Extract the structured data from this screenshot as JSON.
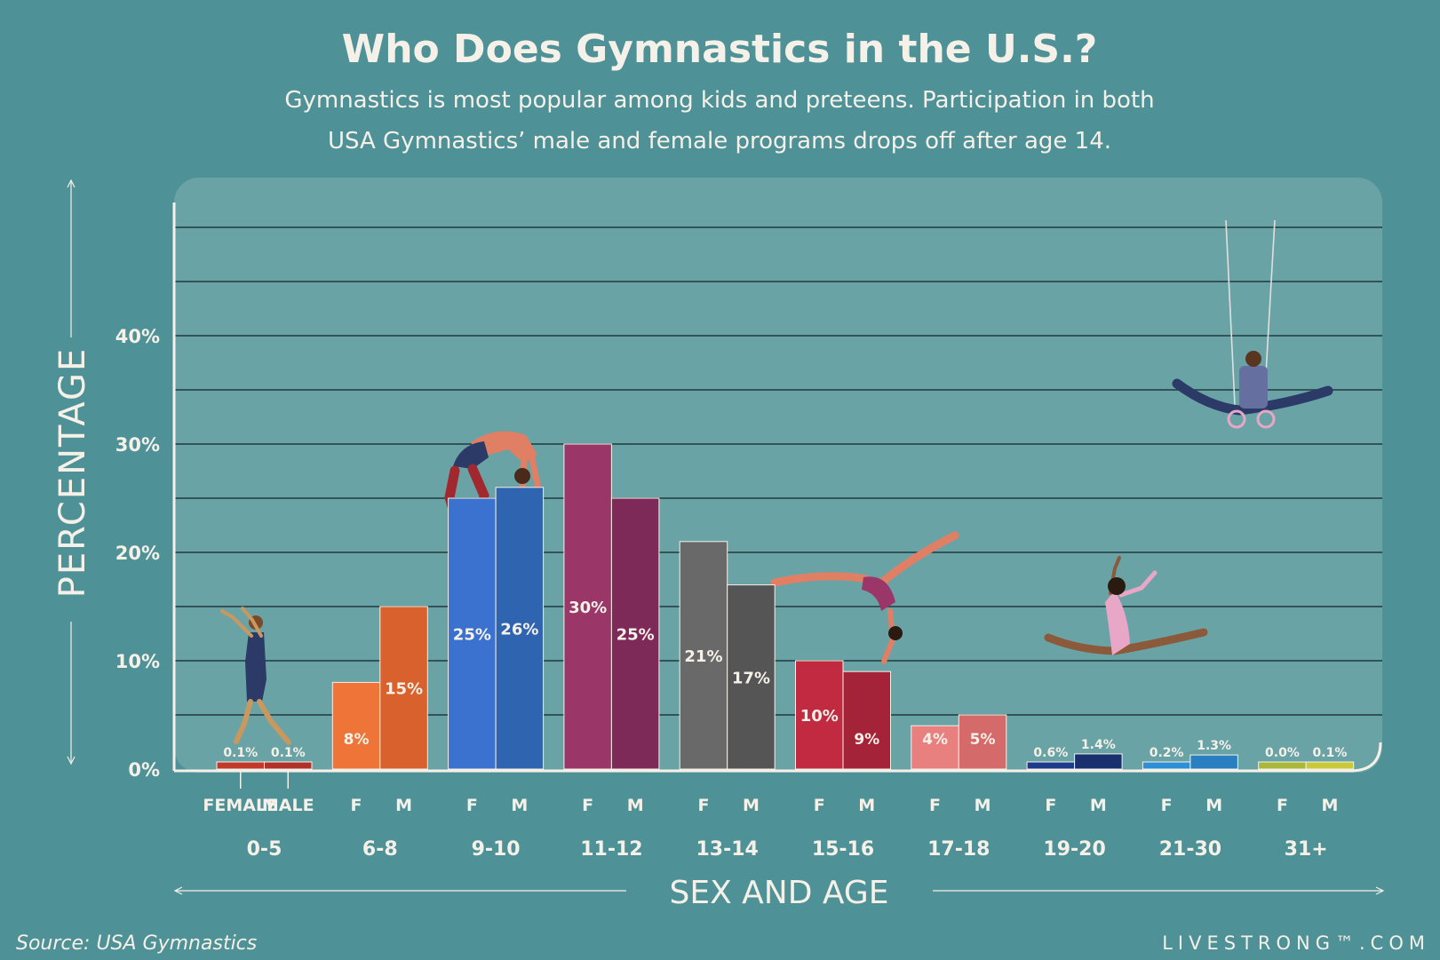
{
  "chart_data": {
    "type": "bar",
    "title": "Who Does Gymnastics in the U.S.?",
    "subtitle_lines": [
      "Gymnastics is most popular among kids and preteens. Participation in both",
      "USA Gymnastics’ male and female programs drops off after age 14."
    ],
    "ylabel": "PERCENTAGE",
    "xlabel": "SEX AND AGE",
    "ylim": [
      0,
      52
    ],
    "yticks": [
      {
        "value": 0,
        "label": "0%"
      },
      {
        "value": 10,
        "label": "10%"
      },
      {
        "value": 20,
        "label": "20%"
      },
      {
        "value": 30,
        "label": "30%"
      },
      {
        "value": 40,
        "label": "40%"
      }
    ],
    "gridlines": [
      5,
      10,
      15,
      20,
      25,
      30,
      35,
      40,
      45,
      50
    ],
    "groups": [
      {
        "age": "0-5",
        "female_label": "FEMALE",
        "male_label": "MALE",
        "female": {
          "value": 0.1,
          "label": "0.1%",
          "color": "#c0392b"
        },
        "male": {
          "value": 0.1,
          "label": "0.1%",
          "color": "#b0302a"
        }
      },
      {
        "age": "6-8",
        "female_label": "F",
        "male_label": "M",
        "female": {
          "value": 8,
          "label": "8%",
          "color": "#ee7537"
        },
        "male": {
          "value": 15,
          "label": "15%",
          "color": "#d9612d"
        }
      },
      {
        "age": "9-10",
        "female_label": "F",
        "male_label": "M",
        "female": {
          "value": 25,
          "label": "25%",
          "color": "#3b72cf"
        },
        "male": {
          "value": 26,
          "label": "26%",
          "color": "#2f64b0"
        }
      },
      {
        "age": "11-12",
        "female_label": "F",
        "male_label": "M",
        "female": {
          "value": 30,
          "label": "30%",
          "color": "#9b3668"
        },
        "male": {
          "value": 25,
          "label": "25%",
          "color": "#7e2a58"
        }
      },
      {
        "age": "13-14",
        "female_label": "F",
        "male_label": "M",
        "female": {
          "value": 21,
          "label": "21%",
          "color": "#696969"
        },
        "male": {
          "value": 17,
          "label": "17%",
          "color": "#555555"
        }
      },
      {
        "age": "15-16",
        "female_label": "F",
        "male_label": "M",
        "female": {
          "value": 10,
          "label": "10%",
          "color": "#c12a40"
        },
        "male": {
          "value": 9,
          "label": "9%",
          "color": "#a52338"
        }
      },
      {
        "age": "17-18",
        "female_label": "F",
        "male_label": "M",
        "female": {
          "value": 4,
          "label": "4%",
          "color": "#e88080"
        },
        "male": {
          "value": 5,
          "label": "5%",
          "color": "#d46a6a"
        }
      },
      {
        "age": "19-20",
        "female_label": "F",
        "male_label": "M",
        "female": {
          "value": 0.6,
          "label": "0.6%",
          "color": "#1e3a8a"
        },
        "male": {
          "value": 1.4,
          "label": "1.4%",
          "color": "#1a2f6e"
        }
      },
      {
        "age": "21-30",
        "female_label": "F",
        "male_label": "M",
        "female": {
          "value": 0.2,
          "label": "0.2%",
          "color": "#2f8fd6"
        },
        "male": {
          "value": 1.3,
          "label": "1.3%",
          "color": "#2a7fc0"
        }
      },
      {
        "age": "31+",
        "female_label": "F",
        "male_label": "M",
        "female": {
          "value": 0.0,
          "label": "0.0%",
          "color": "#a9b838"
        },
        "male": {
          "value": 0.1,
          "label": "0.1%",
          "color": "#c9c93a"
        }
      }
    ]
  },
  "footer": {
    "source": "Source: USA Gymnastics",
    "brand": "LIVESTRONG™.COM"
  }
}
